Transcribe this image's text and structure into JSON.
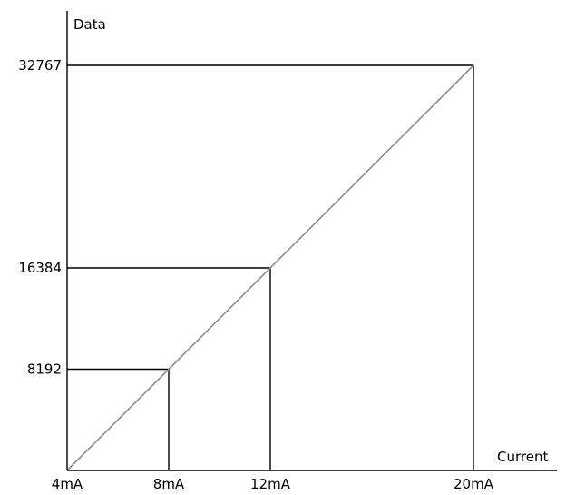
{
  "chart_data": {
    "type": "line",
    "xlabel": "Current",
    "ylabel": "Data",
    "x_tick_labels": [
      "4mA",
      "8mA",
      "12mA",
      "20mA"
    ],
    "y_tick_labels": [
      "8192",
      "16384",
      "32767"
    ],
    "x_ticks": [
      4,
      8,
      12,
      20
    ],
    "y_ticks": [
      8192,
      16384,
      32767
    ],
    "xlim": [
      4,
      20
    ],
    "ylim": [
      0,
      32767
    ],
    "grid": false,
    "series": [
      {
        "x": [
          4,
          8,
          12,
          20
        ],
        "y": [
          0,
          8192,
          16384,
          32767
        ],
        "color": "#8c8c8c"
      }
    ],
    "reference_points": [
      {
        "x": 8,
        "y": 8192
      },
      {
        "x": 12,
        "y": 16384
      },
      {
        "x": 20,
        "y": 32767
      }
    ],
    "colors": {
      "axis": "#000000",
      "series": "#8c8c8c"
    }
  }
}
